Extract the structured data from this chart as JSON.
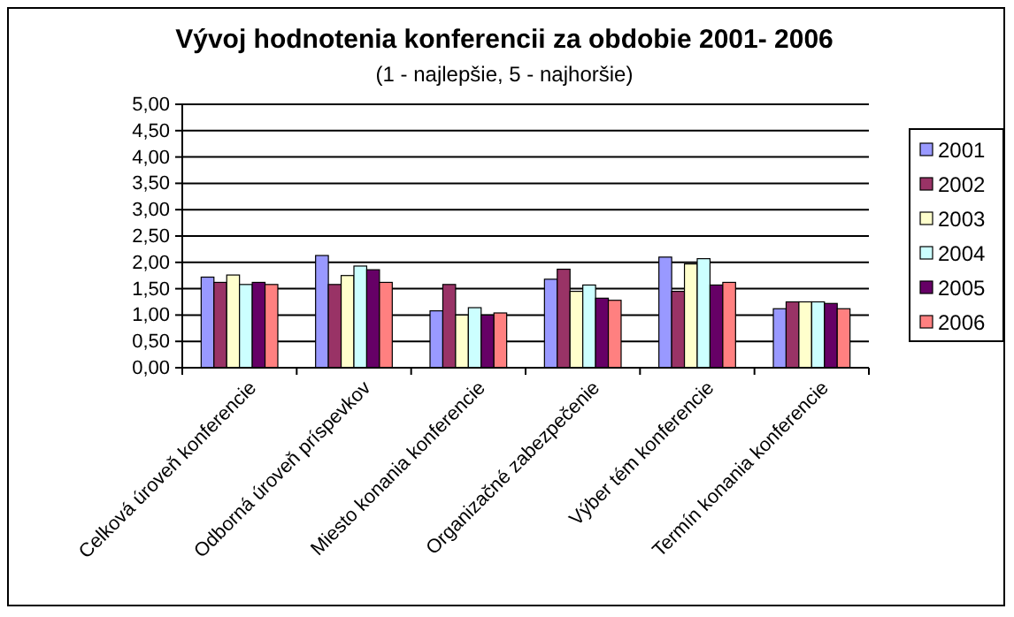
{
  "chart_data": {
    "type": "bar",
    "title": "Vývoj hodnotenia konferencii  za obdobie 2001- 2006",
    "subtitle": "(1 - najlepšie, 5 - najhoršie)",
    "categories": [
      "Celková úroveň konferencie",
      "Odborná úroveň príspevkov",
      "Miesto konania konferencie",
      "Organizačné zabezpečenie",
      "Výber tém konferencie",
      "Termín konania konferencie"
    ],
    "series": [
      {
        "name": "2001",
        "color": "#9999ff",
        "values": [
          1.72,
          2.13,
          1.08,
          1.68,
          2.1,
          1.12
        ]
      },
      {
        "name": "2002",
        "color": "#993366",
        "values": [
          1.62,
          1.58,
          1.58,
          1.87,
          1.45,
          1.25
        ]
      },
      {
        "name": "2003",
        "color": "#ffffcc",
        "values": [
          1.76,
          1.75,
          1.0,
          1.45,
          1.97,
          1.25
        ]
      },
      {
        "name": "2004",
        "color": "#ccffff",
        "values": [
          1.58,
          1.93,
          1.14,
          1.57,
          2.07,
          1.25
        ]
      },
      {
        "name": "2005",
        "color": "#660066",
        "values": [
          1.62,
          1.86,
          1.0,
          1.32,
          1.57,
          1.22
        ]
      },
      {
        "name": "2006",
        "color": "#ff8080",
        "values": [
          1.58,
          1.62,
          1.04,
          1.28,
          1.62,
          1.12
        ]
      }
    ],
    "ylim": [
      0,
      5
    ],
    "yticks": [
      {
        "value": 0,
        "label": "0,00"
      },
      {
        "value": 0.5,
        "label": "0,50"
      },
      {
        "value": 1,
        "label": "1,00"
      },
      {
        "value": 1.5,
        "label": "1,50"
      },
      {
        "value": 2,
        "label": "2,00"
      },
      {
        "value": 2.5,
        "label": "2,50"
      },
      {
        "value": 3,
        "label": "3,00"
      },
      {
        "value": 3.5,
        "label": "3,50"
      },
      {
        "value": 4,
        "label": "4,00"
      },
      {
        "value": 4.5,
        "label": "4,50"
      },
      {
        "value": 5,
        "label": "5,00"
      }
    ],
    "grid": "y",
    "legend": "right"
  }
}
